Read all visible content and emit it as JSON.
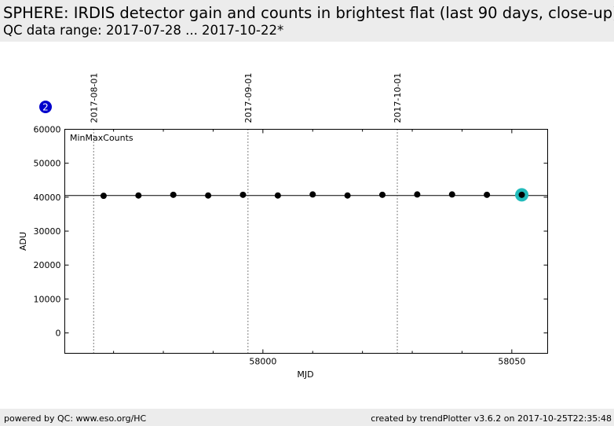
{
  "header": {
    "title": "SPHERE: IRDIS detector gain and counts in brightest flat (last 90 days, close-up)",
    "subtitle": "QC data range: 2017-07-28 ... 2017-10-22*"
  },
  "footer": {
    "left": "powered by QC: www.eso.org/HC",
    "right": "created by trendPlotter v3.6.2 on 2017-10-25T22:35:48"
  },
  "badge": {
    "label": "2",
    "color": "#0000cc"
  },
  "colors": {
    "points": "#000000",
    "highlight": "#22bbbb",
    "reference_line": "#000000"
  },
  "chart_data": {
    "type": "scatter",
    "series_label": "MinMaxCounts",
    "xlabel": "MJD",
    "ylabel": "ADU",
    "xlim": [
      57960.2,
      58057.2
    ],
    "ylim": [
      -6000,
      60000
    ],
    "xticks": [
      {
        "value": 58000,
        "label": "58000"
      },
      {
        "value": 58050,
        "label": "58050"
      }
    ],
    "yticks": [
      {
        "value": 0,
        "label": "0"
      },
      {
        "value": 10000,
        "label": "10000"
      },
      {
        "value": 20000,
        "label": "20000"
      },
      {
        "value": 30000,
        "label": "30000"
      },
      {
        "value": 40000,
        "label": "40000"
      },
      {
        "value": 50000,
        "label": "50000"
      },
      {
        "value": 60000,
        "label": "60000"
      }
    ],
    "date_markers": [
      {
        "mjd": 57966.0,
        "label": "2017-08-01"
      },
      {
        "mjd": 57997.0,
        "label": "2017-09-01"
      },
      {
        "mjd": 58027.0,
        "label": "2017-10-01"
      }
    ],
    "reference_value": 40500,
    "points": [
      {
        "mjd": 57968.0,
        "value": 40400
      },
      {
        "mjd": 57975.0,
        "value": 40500
      },
      {
        "mjd": 57982.0,
        "value": 40700
      },
      {
        "mjd": 57989.0,
        "value": 40500
      },
      {
        "mjd": 57996.0,
        "value": 40700
      },
      {
        "mjd": 58003.0,
        "value": 40500
      },
      {
        "mjd": 58010.0,
        "value": 40800
      },
      {
        "mjd": 58017.0,
        "value": 40500
      },
      {
        "mjd": 58024.0,
        "value": 40700
      },
      {
        "mjd": 58031.0,
        "value": 40800
      },
      {
        "mjd": 58038.0,
        "value": 40800
      },
      {
        "mjd": 58045.0,
        "value": 40700
      },
      {
        "mjd": 58052.0,
        "value": 40700
      }
    ],
    "highlight_index": 12,
    "grid": false,
    "legend": "none"
  }
}
